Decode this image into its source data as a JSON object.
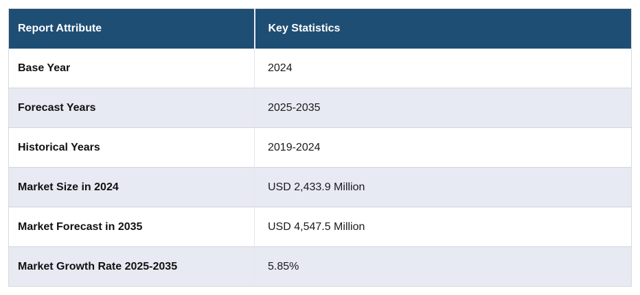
{
  "chart_data": {
    "type": "table",
    "columns": [
      "Report Attribute",
      "Key Statistics"
    ],
    "rows": [
      [
        "Base Year",
        "2024"
      ],
      [
        "Forecast Years",
        "2025-2035"
      ],
      [
        "Historical Years",
        "2019-2024"
      ],
      [
        "Market Size in 2024",
        "USD 2,433.9 Million"
      ],
      [
        "Market Forecast in 2035",
        "USD 4,547.5 Million"
      ],
      [
        "Market Growth Rate 2025-2035",
        "5.85%"
      ]
    ]
  },
  "colors": {
    "header_bg": "#1f4e74",
    "header_text": "#ffffff",
    "row_bg": "#ffffff",
    "row_alt_bg": "#e7e9f3",
    "outer_border": "#d9d9d9",
    "row_divider": "#d4d4da"
  }
}
